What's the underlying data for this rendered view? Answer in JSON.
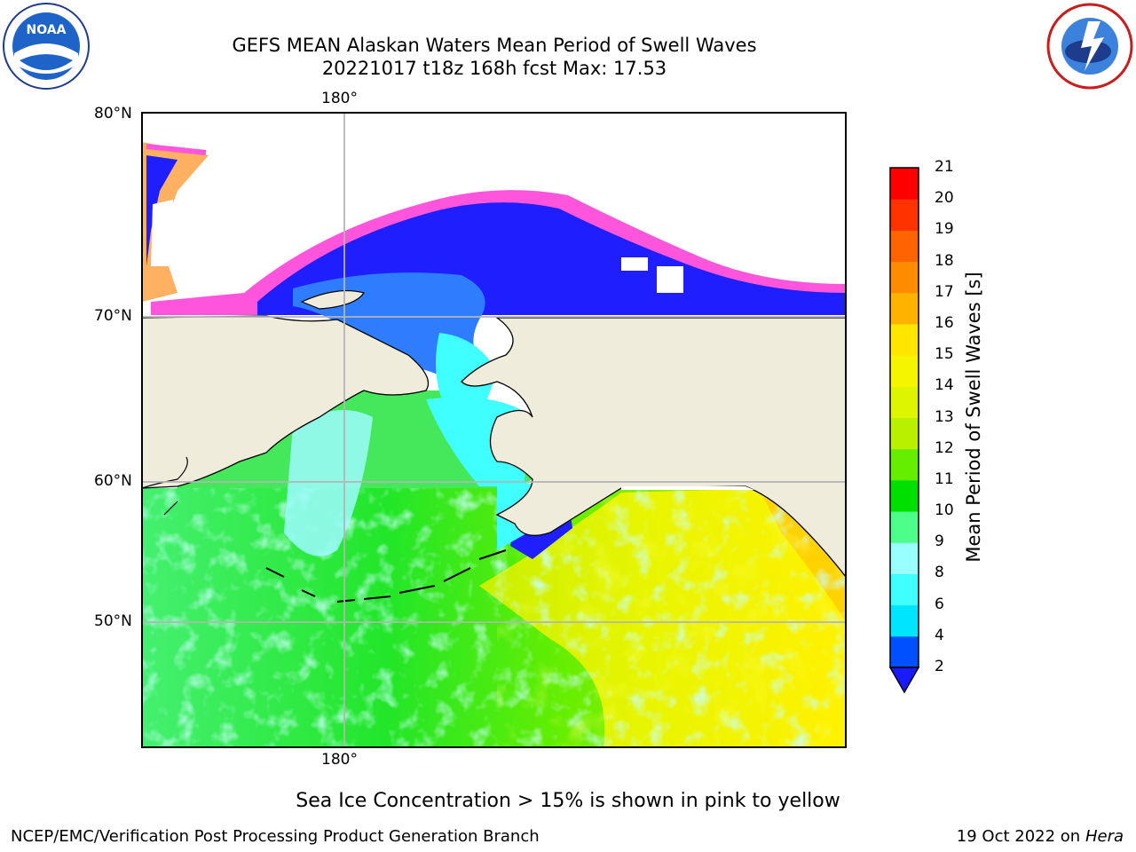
{
  "header": {
    "title_line1": "GEFS MEAN Alaskan Waters Mean Period of Swell Waves",
    "title_line2": "20221017 t18z 168h fcst   Max: 17.53"
  },
  "logos": {
    "left": "noaa-logo",
    "right": "nws-logo",
    "left_text": "NOAA"
  },
  "map": {
    "lon_label_top": "180°",
    "lon_label_bottom": "180°",
    "lat_labels": [
      "80°N",
      "70°N",
      "60°N",
      "50°N"
    ],
    "colors": {
      "land": "#efecdc",
      "coast": "#000000",
      "grid": "#b4b4b4"
    }
  },
  "colorbar": {
    "title": "Mean Period of Swell Waves [s]",
    "ticks": [
      "2",
      "4",
      "6",
      "8",
      "9",
      "10",
      "11",
      "12",
      "13",
      "14",
      "15",
      "16",
      "17",
      "18",
      "19",
      "20",
      "21"
    ],
    "colors": [
      "#0050ff",
      "#00e5ff",
      "#40ffff",
      "#99ffff",
      "#4dff8a",
      "#00e000",
      "#66ee00",
      "#b8f000",
      "#ddf500",
      "#f5f500",
      "#ffe600",
      "#ffb300",
      "#ff8c00",
      "#ff6400",
      "#ff3200",
      "#ff0000"
    ],
    "under_color": "#1a1aff"
  },
  "caption": "Sea Ice Concentration > 15% is shown in pink to yellow",
  "footer": {
    "left": "NCEP/EMC/Verification Post Processing Product Generation Branch",
    "right_prefix": "19 Oct 2022 on ",
    "right_host": "Hera"
  }
}
